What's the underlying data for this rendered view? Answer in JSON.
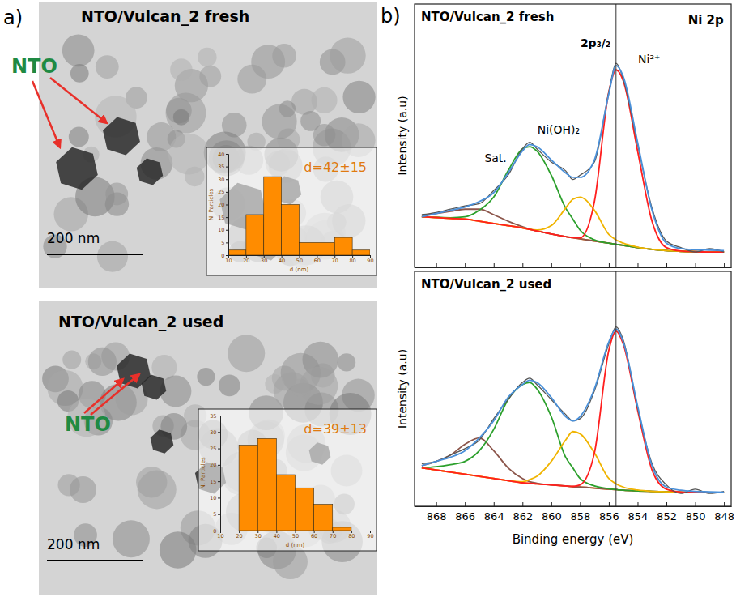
{
  "figure": {
    "panel_labels": [
      "a)",
      "b)"
    ],
    "tem_images": [
      {
        "title": "NTO/Vulcan_2 fresh",
        "label": "NTO",
        "scale_bar": "200 nm"
      },
      {
        "title": "NTO/Vulcan_2 used",
        "label": "NTO",
        "scale_bar": "200 nm"
      }
    ]
  },
  "chart_data": [
    {
      "type": "histogram",
      "xlabel": "d (nm)",
      "ylabel": "N. Particles",
      "bins": [
        10,
        20,
        30,
        40,
        50,
        60,
        70,
        80,
        90
      ],
      "values": [
        2,
        16,
        31,
        20,
        5,
        5,
        7,
        2
      ],
      "color": "#ff8c00",
      "xlim": [
        10,
        90
      ],
      "ylim": [
        0,
        40
      ],
      "xticks": [
        10,
        20,
        30,
        40,
        50,
        60,
        70,
        80,
        90
      ],
      "yticks": [
        0,
        5,
        10,
        15,
        20,
        25,
        30,
        35,
        40
      ],
      "annotations": [
        "d=42±15"
      ]
    },
    {
      "type": "histogram",
      "xlabel": "d (nm)",
      "ylabel": "N. Particles",
      "bins": [
        10,
        20,
        30,
        40,
        50,
        60,
        70,
        80,
        90
      ],
      "values": [
        0,
        26,
        28,
        17,
        13,
        8,
        1,
        0
      ],
      "color": "#ff8c00",
      "xlim": [
        10,
        90
      ],
      "ylim": [
        0,
        35
      ],
      "xticks": [
        10,
        20,
        30,
        40,
        50,
        60,
        70,
        80,
        90
      ],
      "yticks": [
        0,
        5,
        10,
        15,
        20,
        25,
        30,
        35
      ],
      "annotations": [
        "d=39±13"
      ]
    },
    {
      "type": "line",
      "title": "NTO/Vulcan_2 fresh",
      "ylabel": "Intensity (a.u)",
      "x": [
        869,
        868,
        867,
        866,
        865,
        864,
        863,
        862,
        861.5,
        861,
        860,
        859,
        858.5,
        858,
        857,
        856,
        855.5,
        855,
        854,
        853,
        852,
        851,
        850,
        849,
        848
      ],
      "series": [
        {
          "color": "#ff7f0e",
          "values": [
            23,
            22.7,
            22.3,
            22,
            21,
            20,
            19,
            18,
            17.3,
            16.6,
            15.2,
            14,
            13.5,
            13,
            12,
            11,
            10.5,
            10,
            9,
            8.2,
            7.6,
            7.3,
            7.1,
            7,
            7
          ]
        },
        {
          "color": "#8c564b",
          "values": [
            23.5,
            24.5,
            25.5,
            26.5,
            26.5,
            24,
            21,
            18.5,
            17.4,
            16.6,
            15.2,
            14,
            13.5,
            13,
            12,
            11,
            10.5,
            10,
            9,
            8.2,
            7.6,
            7.3,
            7.1,
            7,
            7
          ]
        },
        {
          "color": "#2ca02c",
          "values": [
            23,
            22.8,
            22.6,
            23,
            26,
            32,
            44,
            54,
            55,
            53,
            42,
            27,
            22,
            17,
            12.5,
            11,
            10.5,
            10,
            9,
            8.2,
            7.6,
            7.3,
            7.1,
            7,
            7
          ]
        },
        {
          "color": "#f0b400",
          "values": [
            23,
            22.7,
            22.3,
            22,
            21,
            20,
            19,
            18,
            17.3,
            17,
            19,
            27,
            31,
            32,
            26,
            15,
            12.5,
            11,
            9.2,
            8.2,
            7.6,
            7.3,
            7.1,
            7,
            7
          ]
        },
        {
          "color": "#ff1f1f",
          "values": [
            23,
            22.7,
            22.3,
            22,
            21,
            20,
            19,
            18,
            17.3,
            16.6,
            15.2,
            14,
            13.5,
            13.4,
            30,
            80,
            90,
            85,
            53,
            21,
            9,
            7.4,
            7.1,
            7,
            7
          ]
        },
        {
          "color": "#555555",
          "values": [
            24,
            25,
            26.5,
            28,
            29,
            35,
            42,
            54,
            57,
            54,
            48,
            44,
            40,
            42,
            48,
            80,
            93,
            86,
            56,
            27,
            12,
            9,
            7,
            8.5,
            7
          ]
        },
        {
          "color": "#4a90d9",
          "values": [
            23,
            24.5,
            26,
            27.5,
            30,
            34,
            43,
            53,
            56,
            55,
            49,
            43,
            41,
            41,
            49,
            79,
            92,
            87,
            57,
            26,
            11,
            8.5,
            8,
            7.8,
            7.6
          ]
        }
      ],
      "xlim": [
        869.5,
        847.5
      ],
      "ylim": [
        0,
        120
      ],
      "xticks": [
        868,
        866,
        864,
        862,
        860,
        858,
        856,
        854,
        852,
        850,
        848
      ],
      "tick_labels": false,
      "reference_line": 855.5,
      "annotations": [
        "Ni 2p",
        "2p₃/₂",
        "Ni²⁺",
        "Ni(OH)₂",
        "Sat."
      ]
    },
    {
      "type": "line",
      "title": "NTO/Vulcan_2 used",
      "xlabel": "Binding energy (eV)",
      "ylabel": "Intensity (a.u)",
      "x": [
        869,
        868,
        867,
        866,
        865,
        864,
        863,
        862,
        861.5,
        861,
        860,
        859,
        858.5,
        858,
        857,
        856,
        855.5,
        855,
        854,
        853,
        852,
        851,
        850,
        849,
        848
      ],
      "series": [
        {
          "color": "#ff7f0e",
          "values": [
            18,
            17,
            16,
            15,
            14,
            13,
            12,
            11,
            10.8,
            10.5,
            10,
            9.5,
            9.2,
            9,
            8.5,
            8,
            7.8,
            7.5,
            7.2,
            7,
            6.8,
            6.6,
            6.5,
            6.4,
            6.4
          ]
        },
        {
          "color": "#8c564b",
          "values": [
            19,
            21,
            24,
            29,
            32,
            26,
            18,
            13,
            11.5,
            10.8,
            10,
            9.5,
            9.2,
            9,
            8.5,
            8,
            7.8,
            7.5,
            7.2,
            7,
            6.8,
            6.6,
            6.5,
            6.4,
            6.4
          ]
        },
        {
          "color": "#2ca02c",
          "values": [
            18,
            18.5,
            19.5,
            21,
            26,
            36,
            50,
            57,
            58,
            55,
            42,
            23,
            18,
            13,
            9.5,
            8.2,
            7.8,
            7.5,
            7.2,
            7,
            6.8,
            6.6,
            6.5,
            6.4,
            6.4
          ]
        },
        {
          "color": "#f0b400",
          "values": [
            18,
            17,
            16,
            15,
            14,
            13,
            12,
            11.5,
            12.5,
            14,
            21,
            31,
            35,
            34,
            25,
            13,
            10.5,
            9,
            7.6,
            7,
            6.8,
            6.6,
            6.5,
            6.4,
            6.4
          ]
        },
        {
          "color": "#ff1f1f",
          "values": [
            18,
            17,
            16,
            15,
            14,
            13,
            12,
            11,
            10.8,
            10.5,
            10,
            9.5,
            9.3,
            10,
            25,
            73,
            82,
            76,
            45,
            17,
            8,
            6.7,
            6.5,
            6.4,
            6.4
          ]
        },
        {
          "color": "#555555",
          "values": [
            20,
            21,
            24,
            27,
            31,
            41,
            50,
            58,
            60,
            57,
            50,
            43,
            40,
            41,
            54,
            76,
            84,
            78,
            46,
            20,
            10,
            6,
            8,
            6,
            7
          ]
        },
        {
          "color": "#4a90d9",
          "values": [
            19,
            21,
            23,
            26,
            32,
            40,
            51,
            57,
            59,
            58,
            51,
            42,
            40,
            42,
            55,
            77,
            83,
            77,
            47,
            19,
            9,
            7.5,
            7,
            6.8,
            6.6
          ]
        }
      ],
      "xlim": [
        869.5,
        847.5
      ],
      "ylim": [
        0,
        110
      ],
      "xticks": [
        868,
        866,
        864,
        862,
        860,
        858,
        856,
        854,
        852,
        850,
        848
      ],
      "tick_labels": "x",
      "reference_line": 855.5
    }
  ]
}
